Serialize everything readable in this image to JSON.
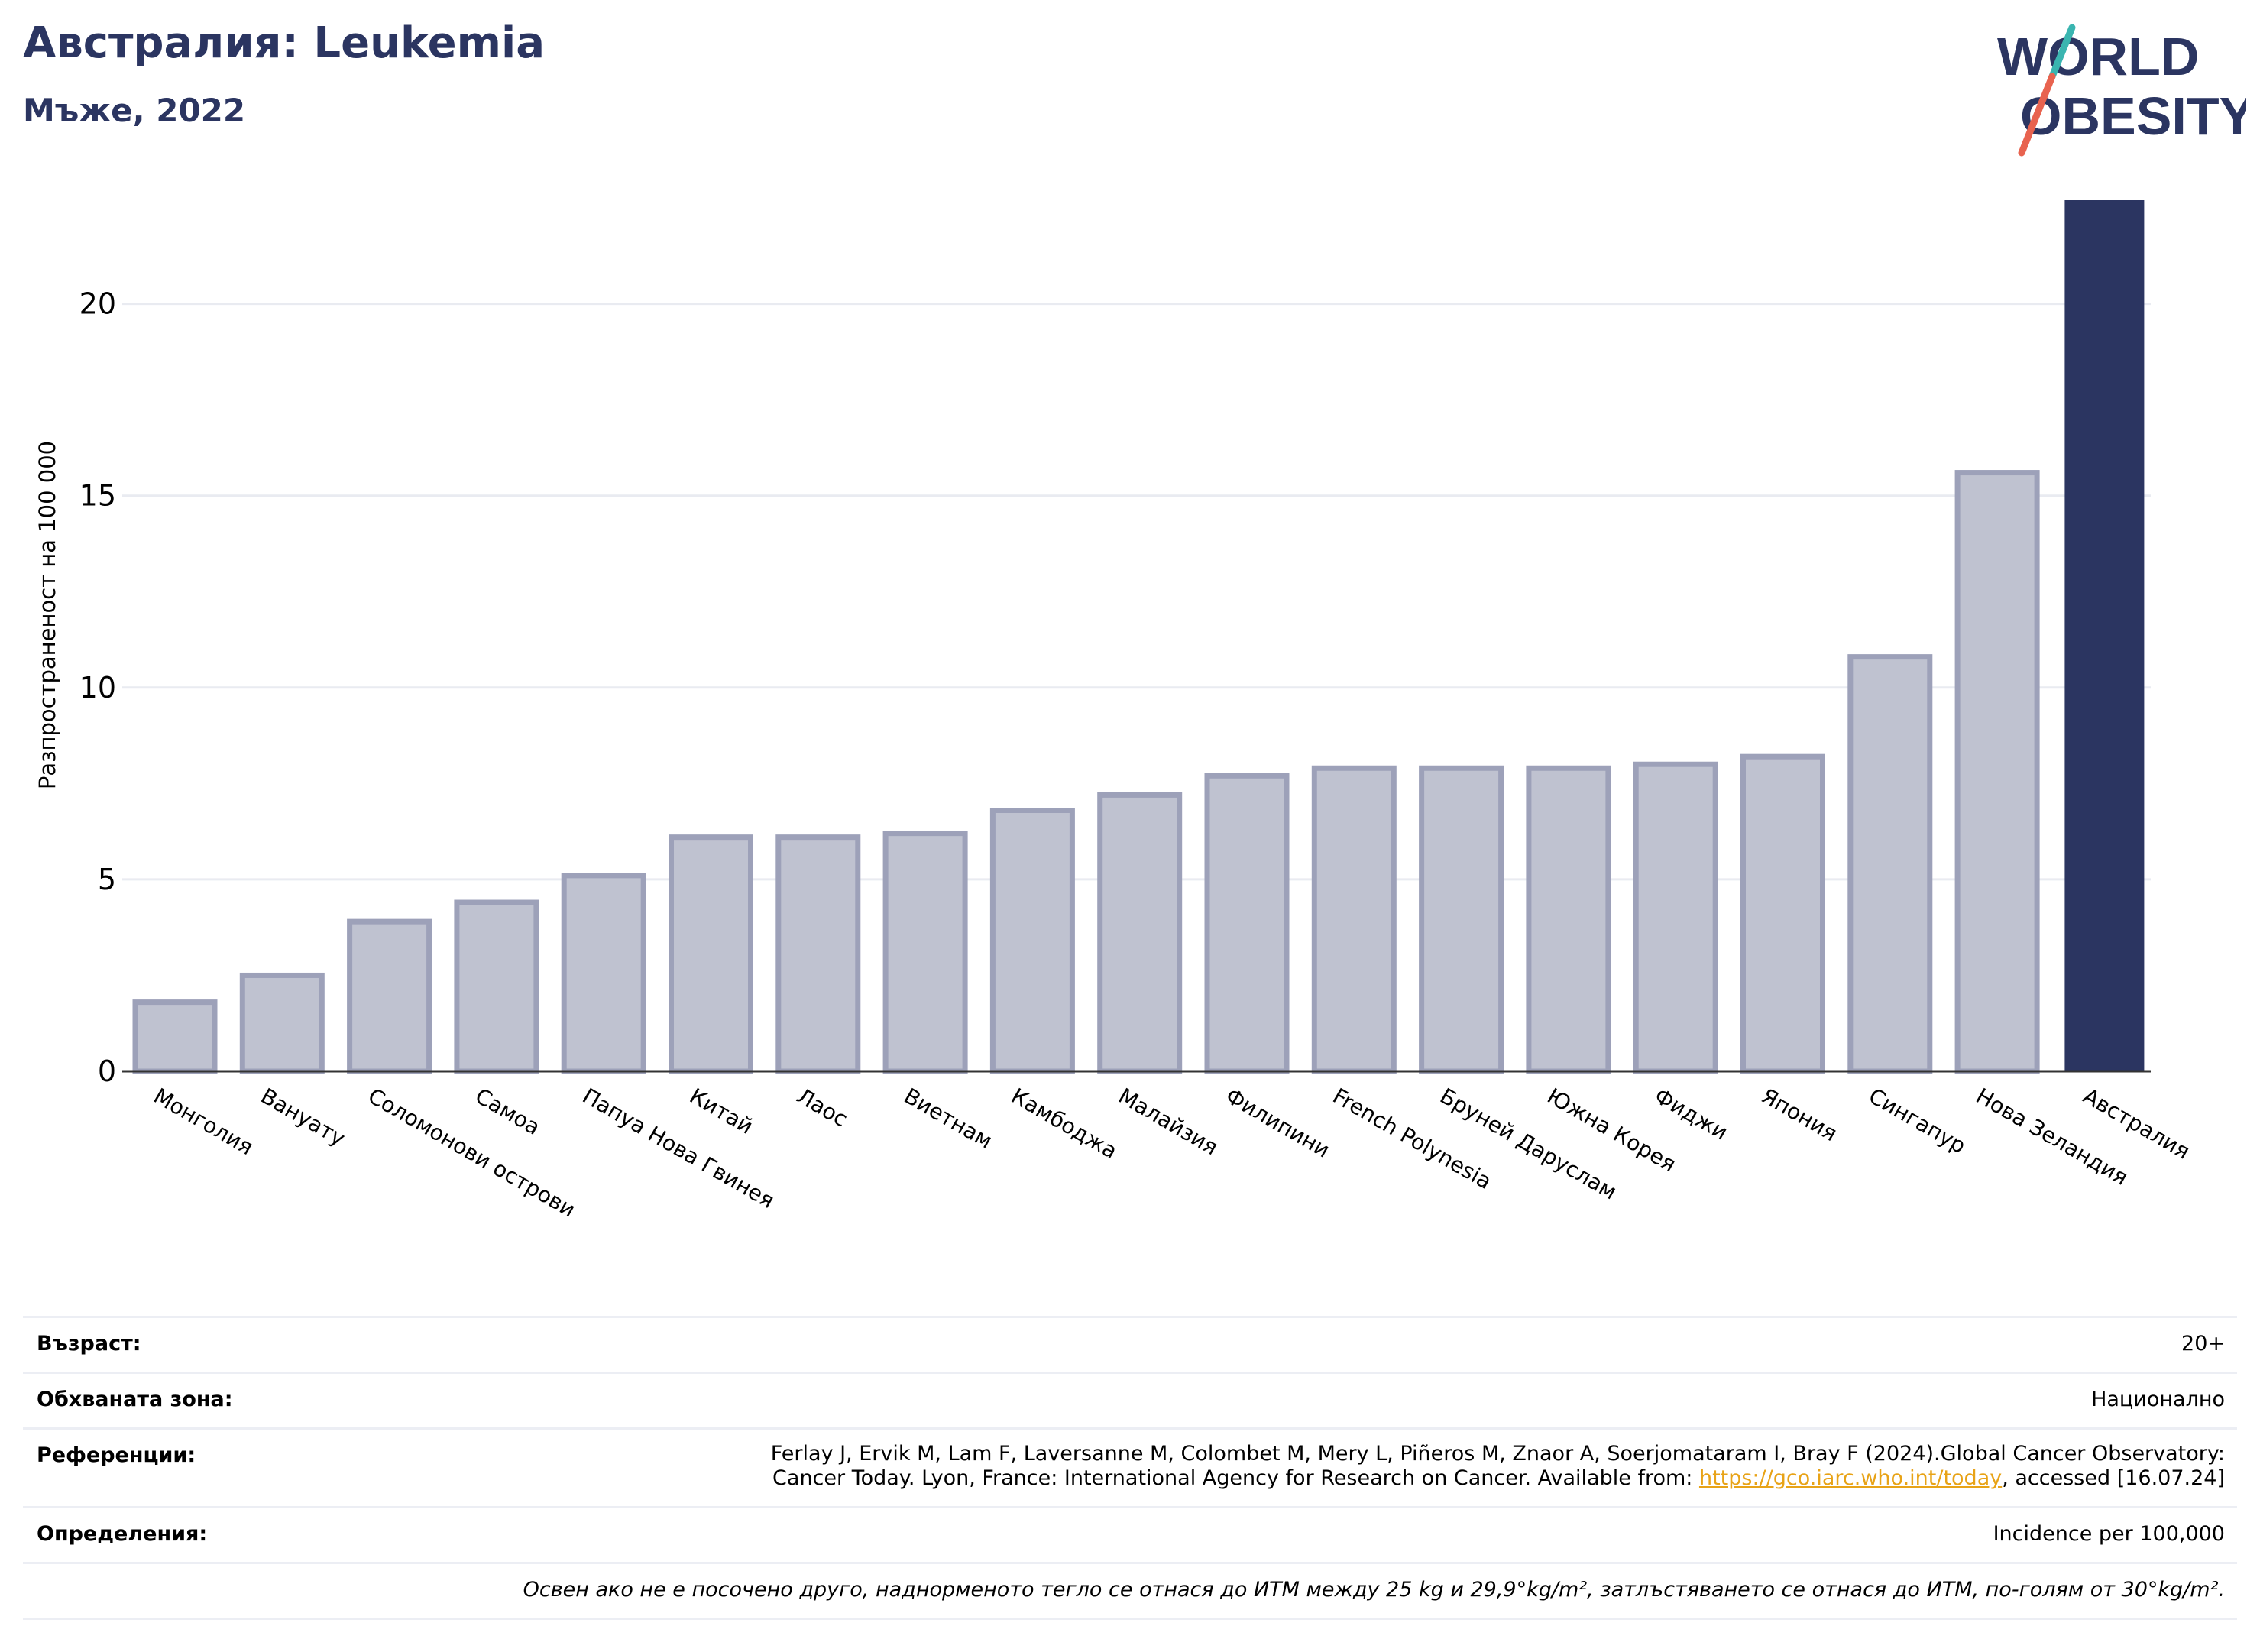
{
  "header": {
    "title": "Австралия: Leukemia",
    "subtitle": "Мъже, 2022"
  },
  "logo": {
    "line1": "WORLD",
    "line2": "OBESITY",
    "text_color": "#2b3561",
    "slash_teal": "#3ab5b0",
    "slash_coral": "#e8634f"
  },
  "chart_data": {
    "type": "bar",
    "ylabel": "Разпространеност  на 100 000",
    "xlabel": "",
    "ylim": [
      0,
      22.7
    ],
    "yticks": [
      0,
      5,
      10,
      15,
      20
    ],
    "grid": true,
    "categories": [
      "Монголия",
      "Вануату",
      "Соломонови острови",
      "Самоа",
      "Папуа Нова Гвинея",
      "Китай",
      "Лаос",
      "Виетнам",
      "Камбоджа",
      "Малайзия",
      "Филипини",
      "French Polynesia",
      "Бруней Даруслам",
      "Южна Корея",
      "Фиджи",
      "Япония",
      "Сингапур",
      "Нова Зеландия",
      "Австралия"
    ],
    "values": [
      1.8,
      2.5,
      3.9,
      4.4,
      5.1,
      6.1,
      6.1,
      6.2,
      6.8,
      7.2,
      7.7,
      7.9,
      7.9,
      7.9,
      8.0,
      8.2,
      10.8,
      15.6,
      22.7
    ],
    "highlight": "Австралия",
    "colors": {
      "bar": "#bfc2d0",
      "bar_border": "#9da1b9",
      "highlight": "#2b3561",
      "grid": "#e9ebf1",
      "axis": "#333333"
    }
  },
  "info": {
    "age_label": "Възраст:",
    "age_value": "20+",
    "coverage_label": "Обхваната зона:",
    "coverage_value": "Национално",
    "references_label": "Референции:",
    "references_line1": "Ferlay J, Ervik M, Lam F, Laversanne M, Colombet M, Mery L, Piñeros M, Znaor A, Soerjomataram I, Bray F (2024).Global Cancer Observatory:",
    "references_line2_pre": "Cancer Today. Lyon, France: International Agency for Research on Cancer. Available from: ",
    "references_link": "https://gco.iarc.who.int/today",
    "references_line2_post": ", accessed [16.07.24]",
    "definitions_label": "Определения:",
    "definitions_value": "Incidence per 100,000",
    "note": "Освен ако не е посочено друго, наднорменото тегло се отнася до ИТМ между 25 kg и 29,9°kg/m², затлъстяването се отнася до ИТМ, по-голям от 30°kg/m²."
  }
}
